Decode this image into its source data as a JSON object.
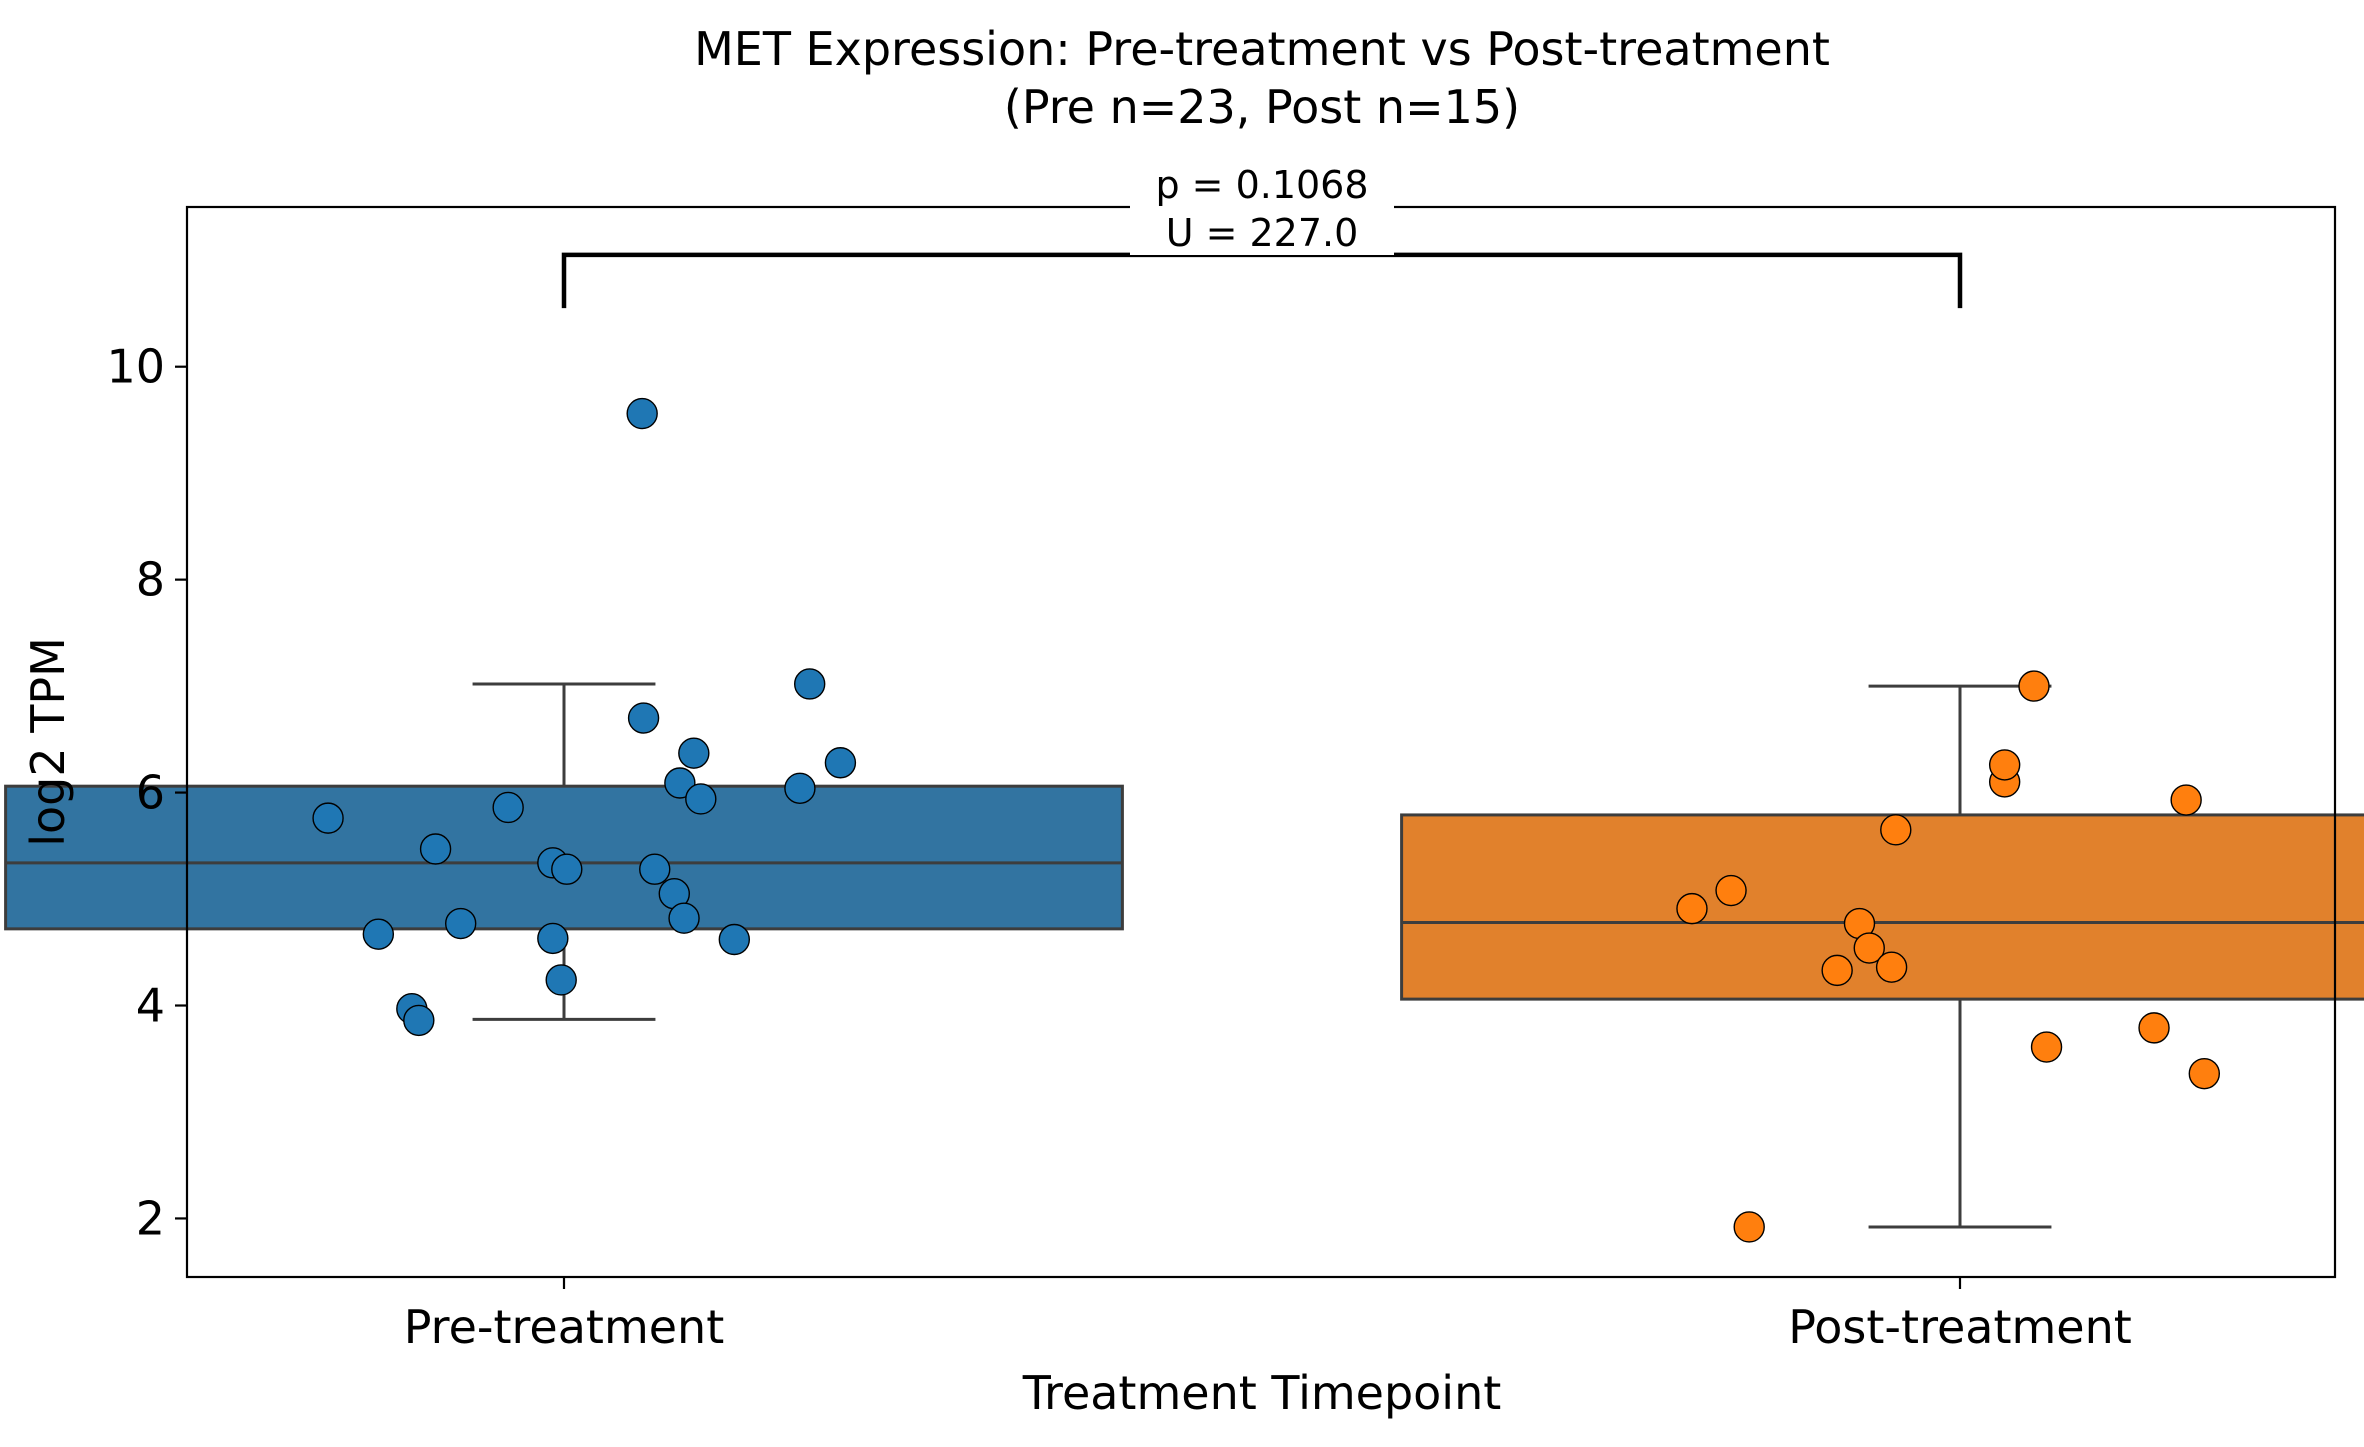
{
  "chart_data": {
    "type": "box",
    "title": "MET Expression: Pre-treatment vs Post-treatment",
    "subtitle": "(Pre n=23, Post n=15)",
    "xlabel": "Treatment Timepoint",
    "ylabel": "log2 TPM",
    "categories": [
      "Pre-treatment",
      "Post-treatment"
    ],
    "ylim": [
      1.45,
      11.5
    ],
    "yticks": [
      2,
      4,
      6,
      8,
      10
    ],
    "grid": false,
    "annotation": {
      "lines": [
        "p = 0.1068",
        "U = 227.0"
      ],
      "bracket_y": 11.05,
      "bracket_drop_to": 10.55
    },
    "series": [
      {
        "category": "Pre-treatment",
        "color": "#3274a1",
        "point_color": "#1f77b4",
        "q1": 4.72,
        "median": 5.34,
        "q3": 6.06,
        "whisker_low": 3.87,
        "whisker_high": 7.02,
        "points": [
          {
            "x": -0.169,
            "y": 5.76
          },
          {
            "x": -0.133,
            "y": 4.67
          },
          {
            "x": -0.109,
            "y": 3.97
          },
          {
            "x": -0.104,
            "y": 3.86
          },
          {
            "x": -0.092,
            "y": 5.47
          },
          {
            "x": -0.074,
            "y": 4.77
          },
          {
            "x": -0.04,
            "y": 5.86
          },
          {
            "x": -0.008,
            "y": 5.34
          },
          {
            "x": -0.008,
            "y": 4.63
          },
          {
            "x": -0.002,
            "y": 4.24
          },
          {
            "x": 0.002,
            "y": 5.28
          },
          {
            "x": 0.056,
            "y": 9.56
          },
          {
            "x": 0.057,
            "y": 6.7
          },
          {
            "x": 0.065,
            "y": 5.28
          },
          {
            "x": 0.079,
            "y": 5.05
          },
          {
            "x": 0.083,
            "y": 6.09
          },
          {
            "x": 0.086,
            "y": 4.82
          },
          {
            "x": 0.093,
            "y": 6.37
          },
          {
            "x": 0.098,
            "y": 5.94
          },
          {
            "x": 0.122,
            "y": 4.62
          },
          {
            "x": 0.169,
            "y": 6.04
          },
          {
            "x": 0.176,
            "y": 7.02
          },
          {
            "x": 0.198,
            "y": 6.28
          }
        ]
      },
      {
        "category": "Post-treatment",
        "color": "#e1812c",
        "point_color": "#ff7f0e",
        "q1": 4.06,
        "median": 4.78,
        "q3": 5.79,
        "whisker_low": 1.92,
        "whisker_high": 7.0,
        "points": [
          {
            "x": -0.192,
            "y": 4.91
          },
          {
            "x": -0.164,
            "y": 5.08
          },
          {
            "x": -0.151,
            "y": 1.92
          },
          {
            "x": -0.088,
            "y": 4.33
          },
          {
            "x": -0.072,
            "y": 4.77
          },
          {
            "x": -0.065,
            "y": 4.54
          },
          {
            "x": -0.049,
            "y": 4.36
          },
          {
            "x": -0.046,
            "y": 5.65
          },
          {
            "x": 0.032,
            "y": 6.1
          },
          {
            "x": 0.032,
            "y": 6.26
          },
          {
            "x": 0.053,
            "y": 7.0
          },
          {
            "x": 0.062,
            "y": 3.61
          },
          {
            "x": 0.139,
            "y": 3.79
          },
          {
            "x": 0.162,
            "y": 5.93
          },
          {
            "x": 0.175,
            "y": 3.36
          }
        ]
      }
    ]
  }
}
